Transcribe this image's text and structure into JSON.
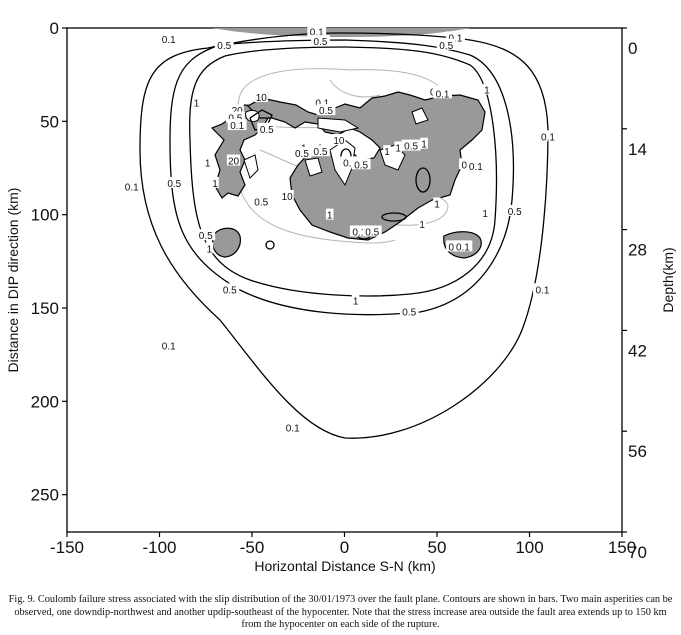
{
  "chart_data": {
    "type": "contour",
    "xlabel": "Horizontal Distance S-N (km)",
    "ylabel": "Distance in DIP direction (km)",
    "y2label": "Depth(km)",
    "xlim": [
      -150,
      150
    ],
    "ylim": [
      0,
      270
    ],
    "y_inverted": true,
    "x_ticks": [
      -150,
      -100,
      -50,
      0,
      50,
      100,
      150
    ],
    "x_tick_labels": [
      "-150",
      "-100",
      "-50",
      "0",
      "50",
      "100",
      "150"
    ],
    "y_ticks": [
      0,
      50,
      100,
      150,
      200,
      250
    ],
    "y_tick_labels": [
      "0",
      "50",
      "100",
      "150",
      "200",
      "250"
    ],
    "y2_ticks": [
      0,
      14,
      28,
      42,
      56,
      70
    ],
    "y2_tick_labels": [
      "0",
      "14",
      "28",
      "42",
      "56",
      "70"
    ],
    "contour_levels_bars": [
      "0.1",
      "0.5",
      "1",
      "10",
      "20"
    ],
    "shading": "stress increase regions shaded grey",
    "contour_labels": [
      {
        "text": "0.1",
        "x": -95,
        "y": 6
      },
      {
        "text": "0.5",
        "x": -65,
        "y": 9
      },
      {
        "text": "0.1",
        "x": -15,
        "y": 2
      },
      {
        "text": "0.5",
        "x": -13,
        "y": 7
      },
      {
        "text": "0.1",
        "x": 60,
        "y": 5
      },
      {
        "text": "0.5",
        "x": 55,
        "y": 9
      },
      {
        "text": "0.1",
        "x": 110,
        "y": 58
      },
      {
        "text": "0.1",
        "x": -115,
        "y": 85
      },
      {
        "text": "0.5",
        "x": -92,
        "y": 83
      },
      {
        "text": "0.5",
        "x": 92,
        "y": 98
      },
      {
        "text": "0.1",
        "x": 107,
        "y": 140
      },
      {
        "text": "0.1",
        "x": -95,
        "y": 170
      },
      {
        "text": "0.5",
        "x": -62,
        "y": 140
      },
      {
        "text": "1",
        "x": 6,
        "y": 146
      },
      {
        "text": "0.5",
        "x": 35,
        "y": 152
      },
      {
        "text": "0.1",
        "x": -28,
        "y": 214
      },
      {
        "text": "1",
        "x": -80,
        "y": 40
      },
      {
        "text": "1",
        "x": -74,
        "y": 72
      },
      {
        "text": "1",
        "x": 77,
        "y": 33
      },
      {
        "text": "1",
        "x": 76,
        "y": 99
      },
      {
        "text": "1",
        "x": -73,
        "y": 118
      },
      {
        "text": "10",
        "x": -45,
        "y": 37
      },
      {
        "text": "20",
        "x": -58,
        "y": 44
      },
      {
        "text": "0.5",
        "x": -59,
        "y": 48
      },
      {
        "text": "0.1",
        "x": -58,
        "y": 52
      },
      {
        "text": "0.5",
        "x": -42,
        "y": 54
      },
      {
        "text": "0.1",
        "x": -12,
        "y": 40
      },
      {
        "text": "0.5",
        "x": -10,
        "y": 44
      },
      {
        "text": "1",
        "x": -22,
        "y": 64
      },
      {
        "text": "0.5",
        "x": -23,
        "y": 67
      },
      {
        "text": "0.5",
        "x": -13,
        "y": 66
      },
      {
        "text": "0.5",
        "x": 50,
        "y": 34
      },
      {
        "text": "0.1",
        "x": 53,
        "y": 35
      },
      {
        "text": "1",
        "x": 23,
        "y": 66
      },
      {
        "text": "10",
        "x": -3,
        "y": 60
      },
      {
        "text": "0.1",
        "x": 3,
        "y": 72
      },
      {
        "text": "0.5",
        "x": 9,
        "y": 73
      },
      {
        "text": "1",
        "x": 29,
        "y": 64
      },
      {
        "text": "0.5",
        "x": 36,
        "y": 63
      },
      {
        "text": "1",
        "x": 43,
        "y": 62
      },
      {
        "text": "0.5",
        "x": 67,
        "y": 73
      },
      {
        "text": "0.1",
        "x": 71,
        "y": 74
      },
      {
        "text": "1",
        "x": 50,
        "y": 94
      },
      {
        "text": "20",
        "x": -60,
        "y": 71
      },
      {
        "text": "1",
        "x": -70,
        "y": 83
      },
      {
        "text": "0.5",
        "x": -45,
        "y": 93
      },
      {
        "text": "10",
        "x": -31,
        "y": 90
      },
      {
        "text": "1",
        "x": -8,
        "y": 100
      },
      {
        "text": "0.1",
        "x": 8,
        "y": 109
      },
      {
        "text": "0.5",
        "x": 15,
        "y": 109
      },
      {
        "text": "0.5",
        "x": -75,
        "y": 111
      },
      {
        "text": "1",
        "x": 42,
        "y": 105
      },
      {
        "text": "0.5",
        "x": 60,
        "y": 117
      },
      {
        "text": "0.1",
        "x": 64,
        "y": 117
      }
    ]
  },
  "caption": {
    "text": "Fig. 9. Coulomb failure stress associated with the slip distribution of the 30/01/1973 over the fault plane. Contours are shown in bars. Two main asperities can be observed, one downdip-northwest and another updip-southeast of the hypocenter. Note that the stress increase area outside the fault area extends up to 150 km from the hypocenter on each side of the rupture."
  }
}
